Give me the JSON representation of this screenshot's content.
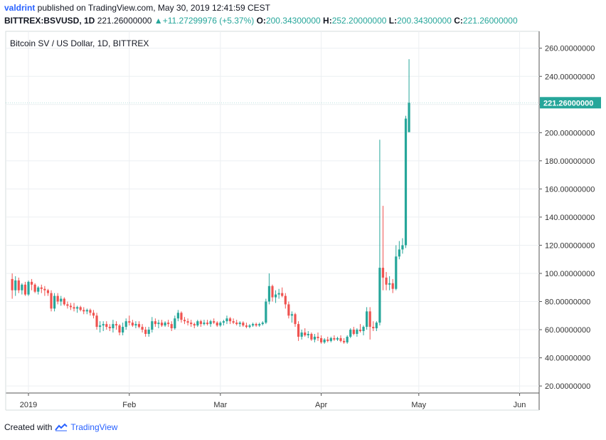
{
  "header": {
    "user": "valdrint",
    "published_text": " published on TradingView.com, May 30, 2019 12:41:59 CEST",
    "symbol": "BITTREX:BSVUSD, 1D",
    "last": "221.26000000",
    "change": "+11.27299976 (+5.37%)",
    "ohlc": {
      "o_label": "O:",
      "o": "200.34300000",
      "h_label": "H:",
      "h": "252.20000000",
      "l_label": "L:",
      "l": "200.34300000",
      "c_label": "C:",
      "c": "221.26000000"
    }
  },
  "footer": {
    "created_with": "Created with",
    "brand": "TradingView"
  },
  "colors": {
    "up": "#26a69a",
    "down": "#ef5350",
    "grid": "#eceff2",
    "axis_text": "#333333"
  },
  "chart_data": {
    "type": "candlestick",
    "title": "Bitcoin SV / US Dollar, 1D, BITTREX",
    "ylim": [
      15,
      272
    ],
    "y_ticks": [
      "260.00000000",
      "240.00000000",
      "220.00000000",
      "200.00000000",
      "180.00000000",
      "160.00000000",
      "140.00000000",
      "120.00000000",
      "100.00000000",
      "80.00000000",
      "60.00000000",
      "40.00000000",
      "20.00000000"
    ],
    "x_ticks": [
      {
        "label": "2019",
        "date": "2019-01-01"
      },
      {
        "label": "Feb",
        "date": "2019-02-01"
      },
      {
        "label": "Mar",
        "date": "2019-03-01"
      },
      {
        "label": "Apr",
        "date": "2019-04-01"
      },
      {
        "label": "May",
        "date": "2019-05-01"
      },
      {
        "label": "Jun",
        "date": "2019-06-01"
      }
    ],
    "x_range": [
      "2018-12-25",
      "2019-06-07"
    ],
    "last_price_label": "221.26000000",
    "last_price": 221.26,
    "start_date": "2018-12-27",
    "ohlc": [
      [
        96,
        100,
        82,
        88
      ],
      [
        88,
        98,
        84,
        95
      ],
      [
        95,
        97,
        86,
        88
      ],
      [
        88,
        93,
        85,
        92
      ],
      [
        92,
        94,
        84,
        85
      ],
      [
        85,
        95,
        84,
        94
      ],
      [
        94,
        96,
        88,
        92
      ],
      [
        92,
        93,
        86,
        87
      ],
      [
        87,
        91,
        85,
        90
      ],
      [
        90,
        92,
        86,
        89
      ],
      [
        89,
        91,
        84,
        88
      ],
      [
        88,
        89,
        84,
        86
      ],
      [
        86,
        88,
        73,
        75
      ],
      [
        75,
        86,
        73,
        84
      ],
      [
        84,
        86,
        78,
        80
      ],
      [
        80,
        84,
        77,
        82
      ],
      [
        82,
        83,
        77,
        78
      ],
      [
        78,
        80,
        75,
        77
      ],
      [
        77,
        79,
        74,
        76
      ],
      [
        76,
        79,
        73,
        75
      ],
      [
        75,
        77,
        72,
        76
      ],
      [
        76,
        77,
        73,
        74
      ],
      [
        74,
        76,
        71,
        73
      ],
      [
        73,
        75,
        71,
        74
      ],
      [
        74,
        75,
        70,
        72
      ],
      [
        72,
        74,
        68,
        70
      ],
      [
        70,
        72,
        60,
        62
      ],
      [
        62,
        66,
        58,
        63
      ],
      [
        63,
        66,
        59,
        64
      ],
      [
        64,
        66,
        60,
        62
      ],
      [
        62,
        64,
        59,
        61
      ],
      [
        61,
        67,
        58,
        64
      ],
      [
        64,
        66,
        60,
        63
      ],
      [
        63,
        64,
        56,
        58
      ],
      [
        58,
        65,
        56,
        62
      ],
      [
        62,
        68,
        60,
        66
      ],
      [
        66,
        70,
        63,
        65
      ],
      [
        65,
        67,
        62,
        63
      ],
      [
        63,
        66,
        61,
        64
      ],
      [
        64,
        66,
        61,
        62
      ],
      [
        62,
        64,
        58,
        60
      ],
      [
        60,
        62,
        55,
        57
      ],
      [
        57,
        62,
        55,
        60
      ],
      [
        60,
        69,
        58,
        66
      ],
      [
        66,
        68,
        62,
        64
      ],
      [
        64,
        67,
        61,
        65
      ],
      [
        65,
        67,
        62,
        63
      ],
      [
        63,
        66,
        62,
        65
      ],
      [
        65,
        67,
        62,
        64
      ],
      [
        64,
        66,
        59,
        61
      ],
      [
        61,
        70,
        60,
        68
      ],
      [
        68,
        74,
        66,
        72
      ],
      [
        72,
        73,
        65,
        67
      ],
      [
        67,
        69,
        64,
        66
      ],
      [
        66,
        68,
        63,
        65
      ],
      [
        65,
        67,
        62,
        64
      ],
      [
        64,
        65,
        61,
        63
      ],
      [
        63,
        67,
        62,
        66
      ],
      [
        66,
        67,
        62,
        64
      ],
      [
        64,
        67,
        63,
        65
      ],
      [
        65,
        67,
        63,
        64
      ],
      [
        64,
        67,
        62,
        66
      ],
      [
        66,
        68,
        64,
        65
      ],
      [
        65,
        66,
        62,
        63
      ],
      [
        63,
        66,
        62,
        65
      ],
      [
        65,
        67,
        63,
        66
      ],
      [
        66,
        70,
        64,
        68
      ],
      [
        68,
        69,
        64,
        66
      ],
      [
        66,
        68,
        64,
        65
      ],
      [
        65,
        67,
        63,
        64
      ],
      [
        64,
        66,
        62,
        65
      ],
      [
        65,
        66,
        62,
        63
      ],
      [
        63,
        65,
        61,
        62
      ],
      [
        62,
        64,
        61,
        63
      ],
      [
        63,
        65,
        62,
        64
      ],
      [
        64,
        65,
        62,
        63
      ],
      [
        63,
        65,
        62,
        64
      ],
      [
        64,
        66,
        63,
        65
      ],
      [
        65,
        82,
        64,
        80
      ],
      [
        80,
        100,
        78,
        91
      ],
      [
        91,
        92,
        80,
        83
      ],
      [
        83,
        88,
        79,
        85
      ],
      [
        85,
        89,
        82,
        86
      ],
      [
        86,
        90,
        83,
        84
      ],
      [
        84,
        86,
        75,
        78
      ],
      [
        78,
        80,
        68,
        70
      ],
      [
        70,
        73,
        65,
        71
      ],
      [
        71,
        72,
        62,
        64
      ],
      [
        64,
        66,
        52,
        55
      ],
      [
        55,
        60,
        53,
        58
      ],
      [
        58,
        61,
        55,
        56
      ],
      [
        56,
        59,
        54,
        57
      ],
      [
        57,
        58,
        52,
        53
      ],
      [
        53,
        57,
        51,
        55
      ],
      [
        55,
        58,
        52,
        54
      ],
      [
        54,
        56,
        50,
        51
      ],
      [
        51,
        54,
        50,
        53
      ],
      [
        53,
        55,
        51,
        52
      ],
      [
        52,
        55,
        51,
        54
      ],
      [
        54,
        56,
        52,
        53
      ],
      [
        53,
        55,
        52,
        54
      ],
      [
        54,
        56,
        51,
        52
      ],
      [
        52,
        54,
        50,
        51
      ],
      [
        51,
        56,
        50,
        55
      ],
      [
        55,
        61,
        54,
        60
      ],
      [
        60,
        62,
        56,
        57
      ],
      [
        57,
        61,
        55,
        60
      ],
      [
        60,
        64,
        58,
        59
      ],
      [
        59,
        63,
        56,
        62
      ],
      [
        62,
        76,
        60,
        73
      ],
      [
        73,
        76,
        53,
        62
      ],
      [
        62,
        66,
        59,
        61
      ],
      [
        61,
        66,
        59,
        65
      ],
      [
        65,
        195,
        63,
        104
      ],
      [
        104,
        148,
        88,
        97
      ],
      [
        97,
        101,
        88,
        92
      ],
      [
        92,
        98,
        88,
        93
      ],
      [
        93,
        96,
        86,
        89
      ],
      [
        89,
        120,
        88,
        112
      ],
      [
        112,
        123,
        110,
        117
      ],
      [
        117,
        125,
        114,
        120
      ],
      [
        120,
        212,
        118,
        210
      ],
      [
        200.343,
        252.2,
        200.343,
        221.26
      ]
    ]
  }
}
